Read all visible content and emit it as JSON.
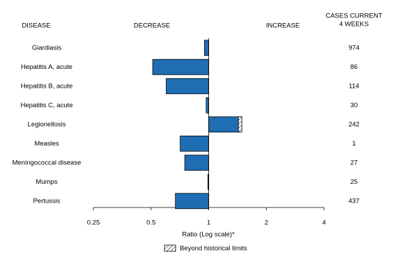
{
  "chart_data": {
    "type": "hbar-log",
    "headers": {
      "disease": "DISEASE",
      "decrease": "DECREASE",
      "increase": "INCREASE",
      "cases": [
        "CASES CURRENT",
        "4 WEEKS"
      ]
    },
    "categories": [
      "Giardiasis",
      "Hepatitis A, acute",
      "Hepatitis B, acute",
      "Hepatitis C, acute",
      "Legionellosis",
      "Measles",
      "Meningococcal disease",
      "Mumps",
      "Pertussis"
    ],
    "values": [
      0.95,
      0.51,
      0.6,
      0.97,
      1.49,
      0.71,
      0.75,
      0.99,
      0.67
    ],
    "beyond_limits_from": [
      null,
      null,
      null,
      null,
      1.43,
      null,
      null,
      null,
      null
    ],
    "cases": [
      974,
      86,
      114,
      30,
      242,
      1,
      27,
      25,
      437
    ],
    "color": "#1f6db3",
    "log_scale": true,
    "xlim": [
      0.25,
      4
    ],
    "xticks": [
      0.25,
      0.5,
      1,
      2,
      4
    ],
    "x_label": "Ratio (Log scale)*",
    "legend": "Beyond historical limits"
  }
}
